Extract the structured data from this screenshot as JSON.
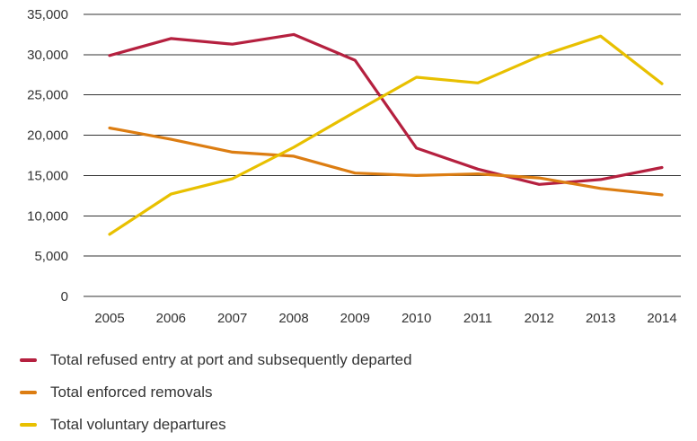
{
  "chart_data": {
    "type": "line",
    "title": "",
    "xlabel": "",
    "ylabel": "",
    "categories": [
      "2005",
      "2006",
      "2007",
      "2008",
      "2009",
      "2010",
      "2011",
      "2012",
      "2013",
      "2014"
    ],
    "ylim": [
      0,
      35000
    ],
    "yticks": [
      0,
      5000,
      10000,
      15000,
      20000,
      25000,
      30000,
      35000
    ],
    "ytick_labels": [
      "0",
      "5,000",
      "10,000",
      "15,000",
      "20,000",
      "25,000",
      "30,000",
      "35,000"
    ],
    "grid": "horizontal",
    "legend_position": "bottom",
    "series": [
      {
        "name": "Total refused entry at port and subsequently departed",
        "color": "#b5203f",
        "values": [
          29900,
          32000,
          31300,
          32500,
          29300,
          18400,
          15800,
          13900,
          14500,
          16000
        ]
      },
      {
        "name": "Total enforced removals",
        "color": "#dc7d12",
        "values": [
          20900,
          19500,
          17900,
          17400,
          15300,
          15000,
          15200,
          14700,
          13400,
          12600
        ]
      },
      {
        "name": "Total voluntary departures",
        "color": "#e8c000",
        "values": [
          7700,
          12700,
          14600,
          18500,
          22900,
          27200,
          26500,
          29800,
          32300,
          26400
        ]
      }
    ]
  }
}
